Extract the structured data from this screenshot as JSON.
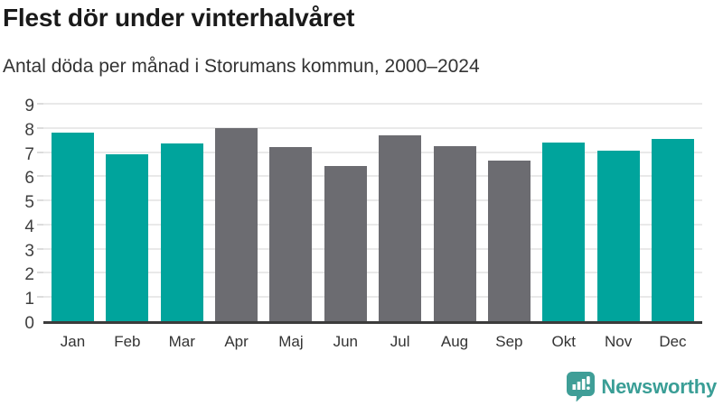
{
  "header": {
    "title": "Flest dör under vinterhalvåret",
    "subtitle": "Antal döda per månad i Storumans kommun, 2000–2024"
  },
  "chart_data": {
    "type": "bar",
    "title": "Flest dör under vinterhalvåret",
    "subtitle": "Antal döda per månad i Storumans kommun, 2000–2024",
    "categories": [
      "Jan",
      "Feb",
      "Mar",
      "Apr",
      "Maj",
      "Jun",
      "Jul",
      "Aug",
      "Sep",
      "Okt",
      "Nov",
      "Dec"
    ],
    "values": [
      7.9,
      7.0,
      7.45,
      8.1,
      7.3,
      6.5,
      7.8,
      7.35,
      6.75,
      7.5,
      7.15,
      7.65
    ],
    "bar_groups": [
      "winter",
      "winter",
      "winter",
      "summer",
      "summer",
      "summer",
      "summer",
      "summer",
      "summer",
      "winter",
      "winter",
      "winter"
    ],
    "group_colors": {
      "winter": "#00a49c",
      "summer": "#6c6c71"
    },
    "xlabel": "",
    "ylabel": "",
    "ylim": [
      0,
      9
    ],
    "yticks": [
      0,
      1,
      2,
      3,
      4,
      5,
      6,
      7,
      8,
      9
    ],
    "grid": true,
    "legend": "none"
  },
  "footer": {
    "brand": "Newsworthy",
    "logo_icon": "bar-chart-speech-bubble-icon"
  },
  "colors": {
    "winter_bar": "#00a49c",
    "summer_bar": "#6c6c71",
    "title_text": "#1a1a1a",
    "subtitle_text": "#333333",
    "axis_line": "#3c3c3c",
    "gridline": "#e9e9e9",
    "tick_mark": "#dcdcdc",
    "tick_label": "#3f3f3f",
    "brand_teal": "#3a9e96"
  }
}
